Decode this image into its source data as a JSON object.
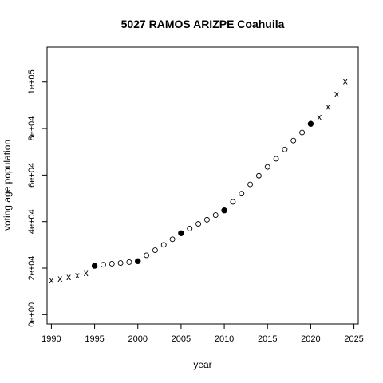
{
  "chart_data": {
    "type": "scatter",
    "title": "5027 RAMOS ARIZPE Coahuila",
    "xlabel": "year",
    "ylabel": "voting age population",
    "xlim": [
      1989.5,
      2025.5
    ],
    "ylim": [
      -4000,
      115000
    ],
    "x_ticks": [
      1990,
      1995,
      2000,
      2005,
      2010,
      2015,
      2020,
      2025
    ],
    "x_tick_labels": [
      "1990",
      "1995",
      "2000",
      "2005",
      "2010",
      "2015",
      "2020",
      "2025"
    ],
    "y_ticks": [
      0,
      20000,
      40000,
      60000,
      80000,
      100000
    ],
    "y_tick_labels": [
      "0e+00",
      "2e+04",
      "4e+04",
      "6e+04",
      "8e+04",
      "1e+05"
    ],
    "grid": false,
    "series": [
      {
        "marker": "x",
        "points": [
          {
            "x": 1990,
            "y": 14800
          },
          {
            "x": 1991,
            "y": 15500
          },
          {
            "x": 1992,
            "y": 16300
          },
          {
            "x": 1993,
            "y": 17000
          },
          {
            "x": 1994,
            "y": 18000
          },
          {
            "x": 2021,
            "y": 85000
          },
          {
            "x": 2022,
            "y": 89500
          },
          {
            "x": 2023,
            "y": 95000
          },
          {
            "x": 2024,
            "y": 100500
          }
        ]
      },
      {
        "marker": "filled-circle",
        "points": [
          {
            "x": 1995,
            "y": 21000
          },
          {
            "x": 2000,
            "y": 23000
          },
          {
            "x": 2005,
            "y": 35000
          },
          {
            "x": 2010,
            "y": 44800
          },
          {
            "x": 2020,
            "y": 82000
          }
        ]
      },
      {
        "marker": "open-circle",
        "points": [
          {
            "x": 1996,
            "y": 21500
          },
          {
            "x": 1997,
            "y": 21900
          },
          {
            "x": 1998,
            "y": 22200
          },
          {
            "x": 1999,
            "y": 22600
          },
          {
            "x": 2001,
            "y": 25500
          },
          {
            "x": 2002,
            "y": 27700
          },
          {
            "x": 2003,
            "y": 30000
          },
          {
            "x": 2004,
            "y": 32400
          },
          {
            "x": 2006,
            "y": 37000
          },
          {
            "x": 2007,
            "y": 39000
          },
          {
            "x": 2008,
            "y": 40800
          },
          {
            "x": 2009,
            "y": 42800
          },
          {
            "x": 2011,
            "y": 48500
          },
          {
            "x": 2012,
            "y": 52000
          },
          {
            "x": 2013,
            "y": 56000
          },
          {
            "x": 2014,
            "y": 59700
          },
          {
            "x": 2015,
            "y": 63500
          },
          {
            "x": 2016,
            "y": 67000
          },
          {
            "x": 2017,
            "y": 71000
          },
          {
            "x": 2018,
            "y": 74800
          },
          {
            "x": 2019,
            "y": 78300
          }
        ]
      }
    ]
  }
}
